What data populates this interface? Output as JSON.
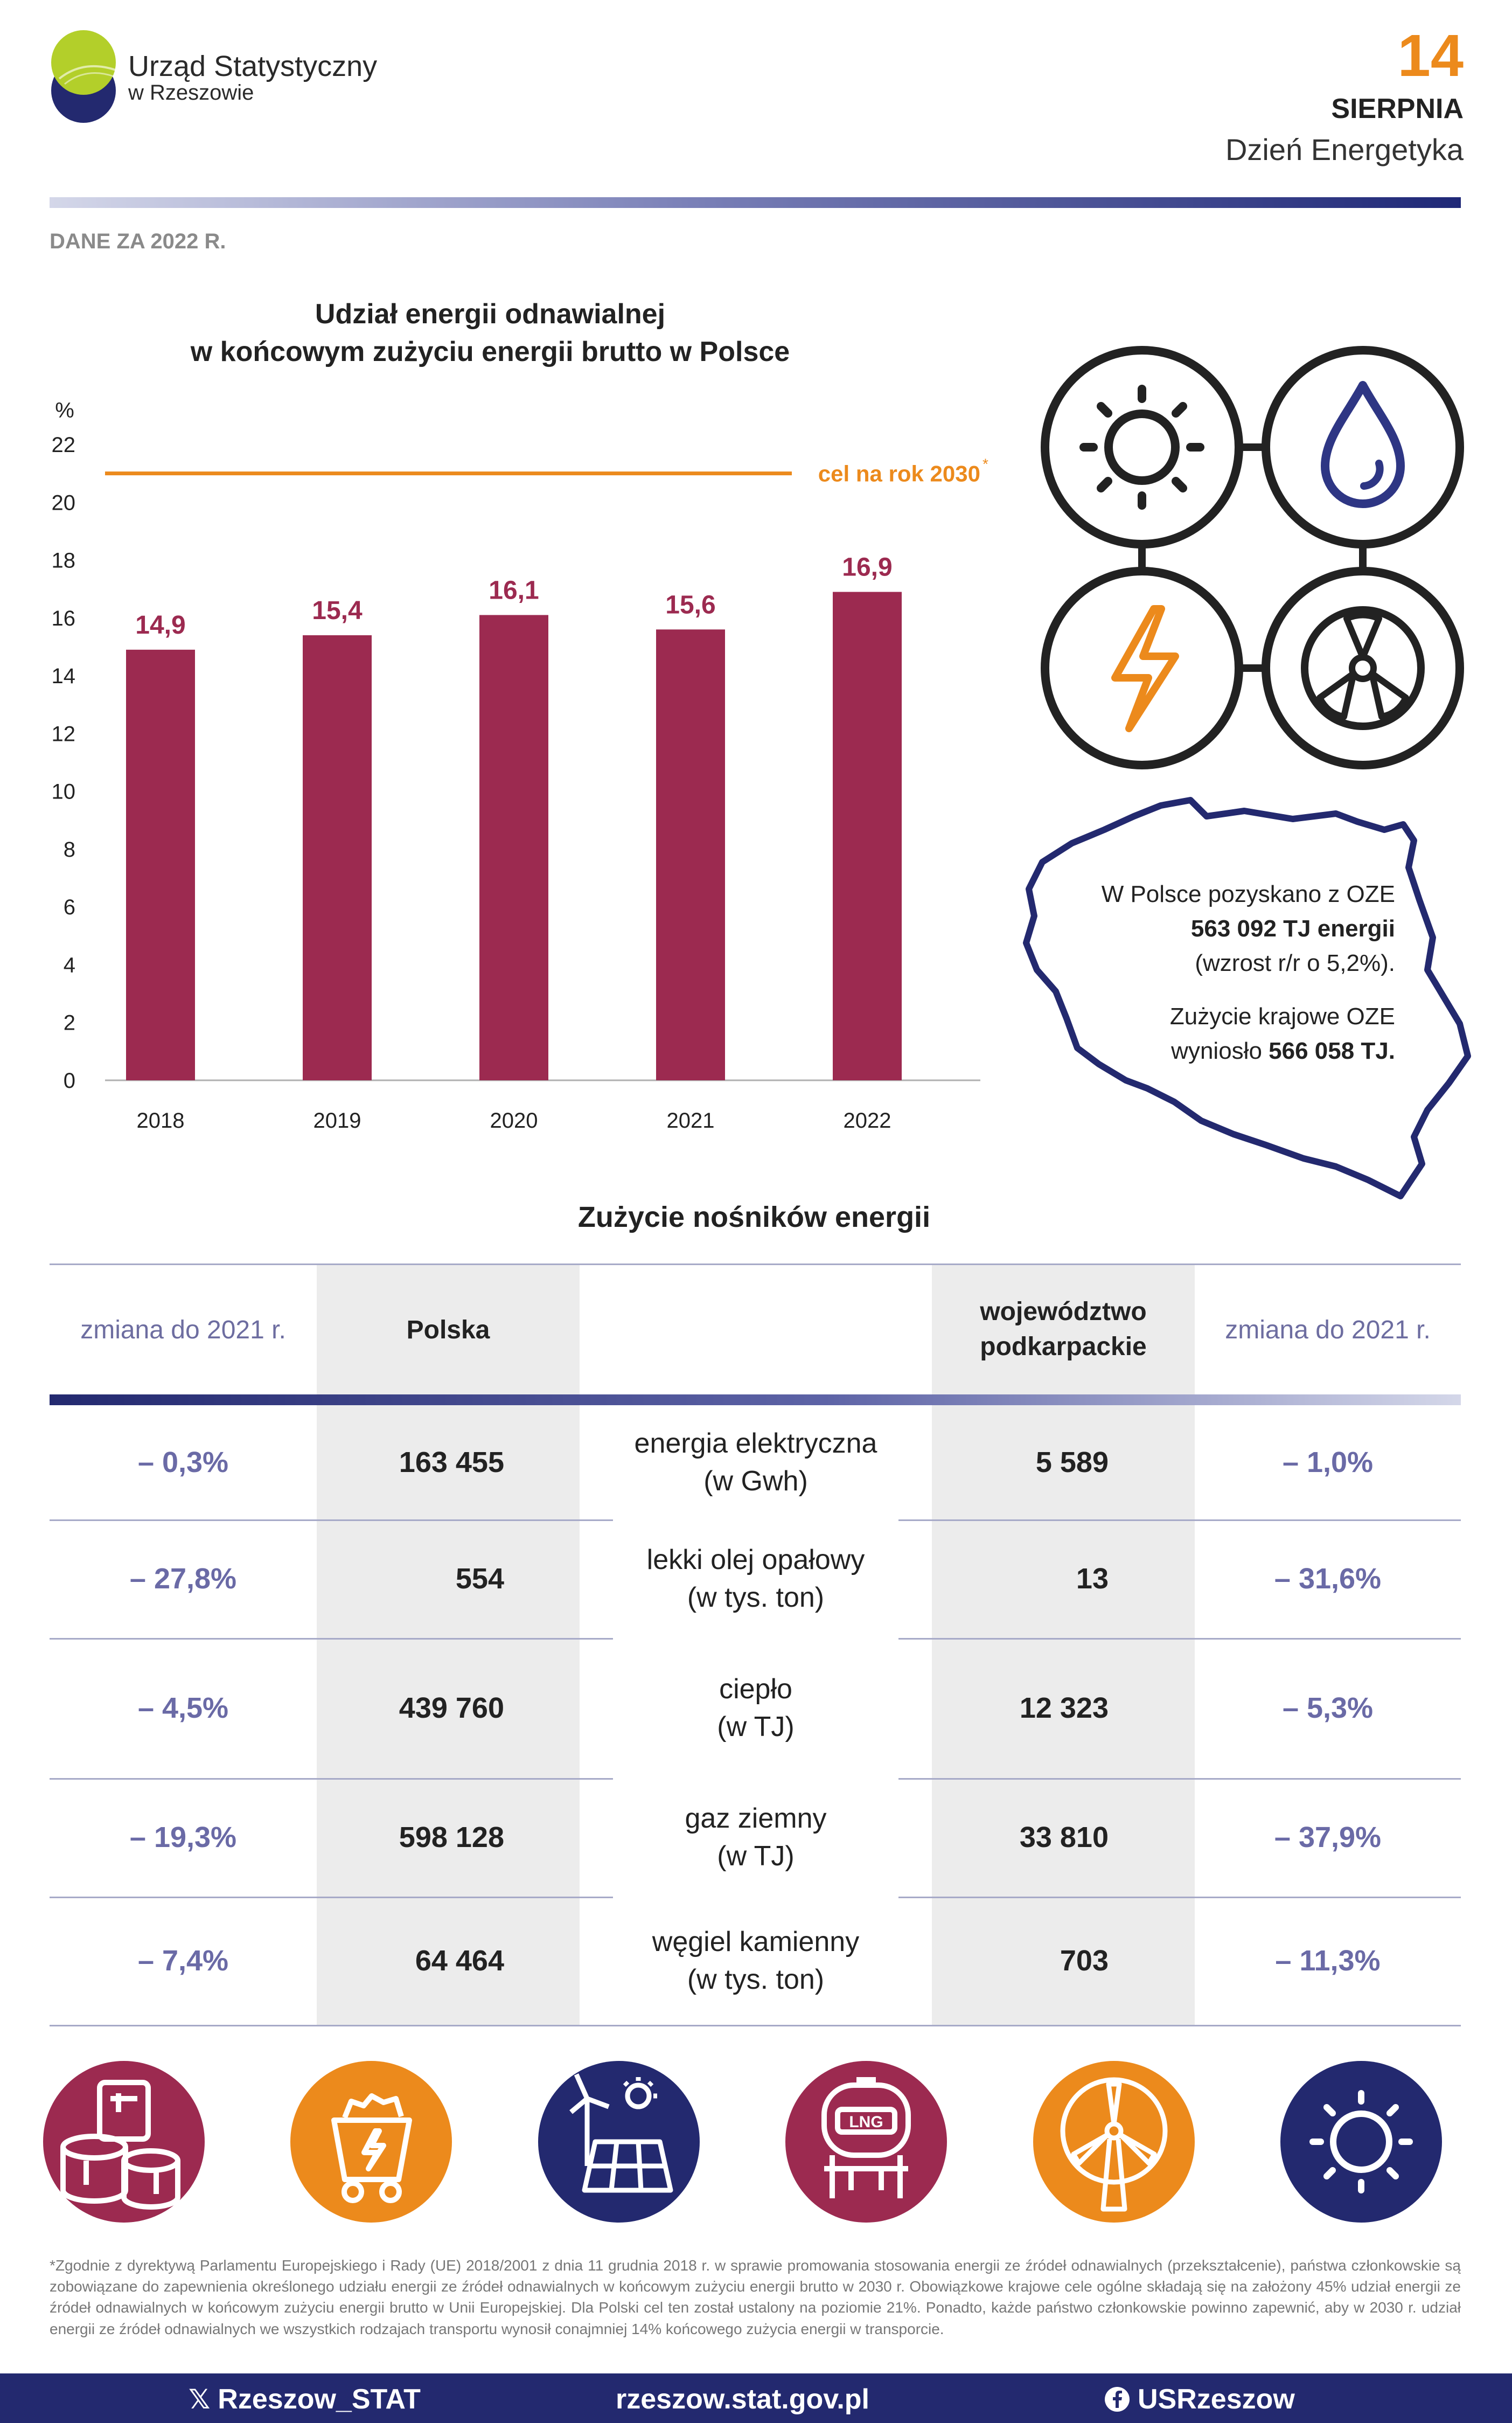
{
  "header": {
    "logo_line1": "Urząd Statystyczny",
    "logo_line2": "w Rzeszowie",
    "day": "14",
    "month": "SIERPNIA",
    "event": "Dzień Energetyka",
    "data_year": "DANE ZA 2022 R."
  },
  "chart_data": {
    "type": "bar",
    "title_line1": "Udział energii odnawialnej",
    "title_line2": "w końcowym zużyciu energii brutto w Polsce",
    "ylabel": "%",
    "ylim": [
      0,
      22
    ],
    "yticks": [
      "0",
      "2",
      "4",
      "6",
      "8",
      "10",
      "12",
      "14",
      "16",
      "18",
      "20",
      "22"
    ],
    "categories": [
      "2018",
      "2019",
      "2020",
      "2021",
      "2022"
    ],
    "values": [
      14.9,
      15.4,
      16.1,
      15.6,
      16.9
    ],
    "value_labels": [
      "14,9",
      "15,4",
      "16,1",
      "15,6",
      "16,9"
    ],
    "target": 21,
    "target_label": "cel na rok 2030",
    "target_marker": "*",
    "bar_color": "#9c2a50",
    "target_color": "#ec8a1c",
    "grid": false
  },
  "oze": {
    "line1": "W Polsce pozyskano z OZE",
    "line2": "563 092 TJ energii",
    "line3": "(wzrost r/r o 5,2%).",
    "line4": "Zużycie krajowe OZE",
    "line5_prefix": "wyniosło ",
    "line5_bold": "566 058 TJ."
  },
  "icons": {
    "top": [
      "sun-icon",
      "water-drop-icon",
      "lightning-icon",
      "wind-turbine-fan-icon"
    ],
    "bottom": [
      "fuel-tanks-icon",
      "coal-cart-icon",
      "renewable-solar-wind-icon",
      "lng-tank-icon",
      "wind-turbine-icon",
      "sun-icon"
    ]
  },
  "table": {
    "title": "Zużycie nośników energii",
    "headers": {
      "change_left": "zmiana do 2021 r.",
      "polska": "Polska",
      "woj_line1": "województwo",
      "woj_line2": "podkarpackie",
      "change_right": "zmiana do 2021 r."
    },
    "rows": [
      {
        "chg_pl": "– 0,3%",
        "pl": "163 455",
        "name": "energia elektryczna",
        "unit": "(w Gwh)",
        "woj": "5 589",
        "chg_woj": "– 1,0%"
      },
      {
        "chg_pl": "– 27,8%",
        "pl": "554",
        "name": "lekki olej opałowy",
        "unit": "(w tys. ton)",
        "woj": "13",
        "chg_woj": "– 31,6%"
      },
      {
        "chg_pl": "– 4,5%",
        "pl": "439 760",
        "name": "ciepło",
        "unit": "(w TJ)",
        "woj": "12 323",
        "chg_woj": "– 5,3%"
      },
      {
        "chg_pl": "– 19,3%",
        "pl": "598 128",
        "name": "gaz ziemny",
        "unit": "(w TJ)",
        "woj": "33 810",
        "chg_woj": "– 37,9%"
      },
      {
        "chg_pl": "– 7,4%",
        "pl": "64 464",
        "name": "węgiel kamienny",
        "unit": "(w tys. ton)",
        "woj": "703",
        "chg_woj": "– 11,3%"
      }
    ]
  },
  "footnote": "*Zgodnie z dyrektywą Parlamentu Europejskiego i Rady (UE) 2018/2001 z dnia 11 grudnia 2018 r. w sprawie promowania stosowania energii ze źródeł odnawialnych (przekształcenie), państwa członkowskie są zobowiązane do zapewnienia określonego udziału energii ze źródeł odnawialnych w końcowym zużyciu energii brutto w 2030 r. Obowiązkowe krajowe cele ogólne składają się na założony 45% udział energii ze źródeł odnawialnych w końcowym zużyciu energii brutto w Unii Europejskiej. Dla Polski cel ten został ustalony na poziomie 21%. Ponadto, każde państwo członkowskie powinno zapewnić, aby w 2030 r. udział energii ze źródeł odnawialnych we wszystkich rodzajach transportu wynosił conajmniej 14% końcowego zużycia energii w transporcie.",
  "footer": {
    "x_handle": "Rzeszow_STAT",
    "website": "rzeszow.stat.gov.pl",
    "fb_handle": "USRzeszow"
  },
  "colors": {
    "navy": "#23296f",
    "crimson": "#9c2a50",
    "orange": "#ec8a1c",
    "purple_text": "#6a6aa6"
  }
}
